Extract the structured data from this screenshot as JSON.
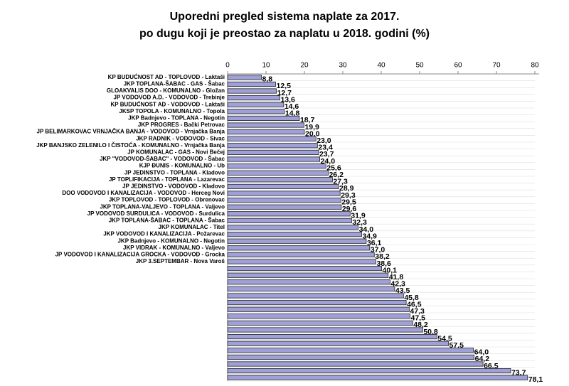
{
  "chart_data": {
    "type": "bar",
    "orientation": "horizontal",
    "title": [
      "Uporedni pregled sistema naplate za 2017.",
      "po dugu koji je preostao za naplatu u 2018. godini (%)"
    ],
    "categories": [
      "KP BUDUĆNOST AD - TOPLOVOD - Laktaši",
      "JKP TOPLANA-ŠABAC - GAS - Šabac",
      "GLOAKVALIS DOO - KOMUNALNO - Gložan",
      "JP VODOVOD A.D. - VODOVOD - Trebinje",
      "KP BUDUĆNOST AD - VODOVOD - Laktaši",
      "JKSP TOPOLA - KOMUNALNO - Topola",
      "JKP Badnjevo - TOPLANA - Negotin",
      "JKP PROGRES - Bački Petrovac",
      "JP BELIMARKOVAC VRNJAČKA BANJA - VODOVOD - Vrnjačka Banja",
      "JKP RADNIK - VODOVOD - Sivac",
      "JKP BANJSKO ZELENILO I ČISTOĆA - KOMUNALNO - Vrnjačka Banja",
      "JP KOMUNALAC - GAS - Novi Bečej",
      "JKP \"VODOVOD-ŠABAC\" - VODOVOD - Šabac",
      "KJP ĐUNIS - KOMUNALNO - Ub",
      "JP JEDINSTVO - TOPLANA - Kladovo",
      "JP TOPLIFIKACIJA - TOPLANA - Lazarevac",
      "JP JEDINSTVO - VODOVOD - Kladovo",
      "DOO VODOVOD I KANALIZACIJA - VODOVOD - Herceg Novi",
      "JKP TOPLOVOD - TOPLOVOD - Obrenovac",
      "JKP TOPLANA-VALJEVO - TOPLANA - Valjevo",
      "JP VODOVOD SURDULICA - VODOVOD - Surdulica",
      "JKP TOPLANA-ŠABAC - TOPLANA - Šabac",
      "JKP KOMUNALAC - Titel",
      "JKP VODOVOD I KANALIZACIJA - Požarevac",
      "JKP Badnjevo - KOMUNALNO - Negotin",
      "JKP VIDRAK - KOMUNALNO - Valjevo",
      "JP VODOVOD I KANALIZACIJA GROCKA - VODOVOD - Grocka",
      "JKP 3.SEPTEMBAR - Nova Varoš",
      null,
      null,
      null,
      null,
      null,
      null,
      null,
      null,
      null,
      null,
      null,
      null,
      null,
      null,
      null,
      null,
      null
    ],
    "values": [
      8.8,
      12.5,
      12.7,
      13.6,
      14.6,
      14.8,
      18.7,
      19.9,
      20.0,
      23.0,
      23.4,
      23.7,
      24.0,
      25.6,
      26.2,
      27.3,
      28.9,
      29.3,
      29.5,
      29.6,
      31.9,
      32.3,
      34.0,
      34.9,
      36.1,
      37.0,
      38.2,
      38.6,
      40.1,
      41.8,
      42.3,
      43.5,
      45.8,
      46.5,
      47.3,
      47.5,
      48.2,
      50.8,
      54.5,
      57.5,
      64.0,
      64.2,
      66.5,
      73.7,
      78.1
    ],
    "value_labels": [
      "8,8",
      "12,5",
      "12,7",
      "13,6",
      "14,6",
      "14,8",
      "18,7",
      "19,9",
      "20,0",
      "23,0",
      "23,4",
      "23,7",
      "24,0",
      "25,6",
      "26,2",
      "27,3",
      "28,9",
      "29,3",
      "29,5",
      "29,6",
      "31,9",
      "32,3",
      "34,0",
      "34,9",
      "36,1",
      "37,0",
      "38,2",
      "38,6",
      "40,1",
      "41,8",
      "42,3",
      "43,5",
      "45,8",
      "46,5",
      "47,3",
      "47,5",
      "48,2",
      "50,8",
      "54,5",
      "57,5",
      "64,0",
      "64,2",
      "66,5",
      "73,7",
      "78,1"
    ],
    "color": "#a0a0d8",
    "xlim": [
      0,
      80
    ],
    "xticks": [
      0,
      10,
      20,
      30,
      40,
      50,
      60,
      70,
      80
    ]
  }
}
